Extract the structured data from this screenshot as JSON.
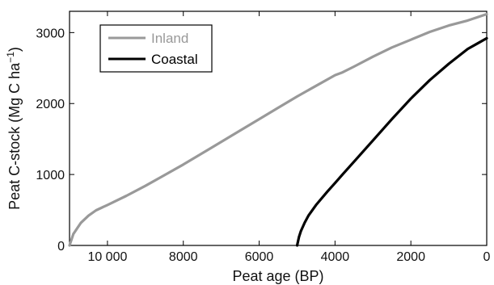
{
  "chart_data": {
    "type": "line",
    "xlabel": "Peat age (BP)",
    "ylabel": "Peat C-stock (Mg C ha",
    "ylabel_sup": "−1",
    "ylabel_close": ")",
    "xlim": [
      11000,
      0
    ],
    "ylim": [
      0,
      3300
    ],
    "x_reversed": true,
    "x_ticks": [
      10000,
      8000,
      6000,
      4000,
      2000,
      0
    ],
    "x_tick_labels": [
      "10 000",
      "8000",
      "6000",
      "4000",
      "2000",
      "0"
    ],
    "y_ticks": [
      0,
      1000,
      2000,
      3000
    ],
    "y_tick_labels": [
      "0",
      "1000",
      "2000",
      "3000"
    ],
    "grid": false,
    "legend_position": "top-left",
    "series": [
      {
        "name": "Inland",
        "color": "#999999",
        "x": [
          11000,
          10900,
          10700,
          10500,
          10300,
          10000,
          9500,
          9000,
          8500,
          8000,
          7500,
          7000,
          6500,
          6000,
          5500,
          5000,
          4500,
          4000,
          3800,
          3500,
          3000,
          2500,
          2000,
          1500,
          1000,
          500,
          0
        ],
        "y": [
          0,
          160,
          320,
          420,
          495,
          570,
          700,
          840,
          990,
          1140,
          1300,
          1460,
          1620,
          1780,
          1940,
          2100,
          2250,
          2400,
          2440,
          2520,
          2660,
          2790,
          2900,
          3010,
          3100,
          3170,
          3260
        ]
      },
      {
        "name": "Coastal",
        "color": "#000000",
        "x": [
          5000,
          4950,
          4900,
          4800,
          4700,
          4500,
          4200,
          4000,
          3800,
          3500,
          3000,
          2500,
          2000,
          1500,
          1000,
          500,
          200,
          0
        ],
        "y": [
          0,
          120,
          200,
          320,
          420,
          570,
          760,
          880,
          1000,
          1180,
          1480,
          1780,
          2070,
          2330,
          2560,
          2770,
          2860,
          2920
        ]
      }
    ]
  }
}
